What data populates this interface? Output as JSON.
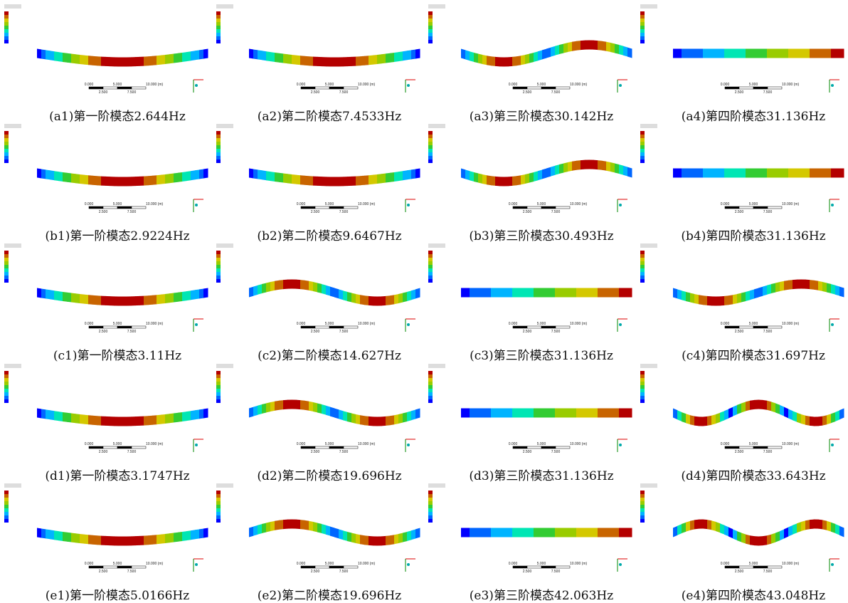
{
  "captions": [
    "(a1)第一阶模态2.644Hz",
    "(a2)第二阶模态7.4533Hz",
    "(a3)第三阶模态30.142Hz",
    "(a4)第四阶模态31.136Hz",
    "(b1)第一阶模态2.9224Hz",
    "(b2)第二阶模态9.6467Hz",
    "(b3)第三阶模态30.493Hz",
    "(b4)第四阶模态31.136Hz",
    "(c1)第一阶模态3.11Hz",
    "(c2)第二阶模态14.627Hz",
    "(c3)第三阶模态31.136Hz",
    "(c4)第四阶模态31.697Hz",
    "(d1)第一阶模态3.1747Hz",
    "(d2)第二阶模态19.696Hz",
    "(d3)第三阶模态31.136Hz",
    "(d4)第四阶模态33.643Hz",
    "(e1)第一阶模态5.0166Hz",
    "(e2)第二阶模态19.696Hz",
    "(e3)第三阶模态42.063Hz",
    "(e4)第四阶模态43.048Hz"
  ],
  "scale_labels": {
    "top": [
      "0.000",
      "5.000",
      "10.000 (m)"
    ],
    "bottom": [
      "2.500",
      "7.500"
    ]
  }
}
